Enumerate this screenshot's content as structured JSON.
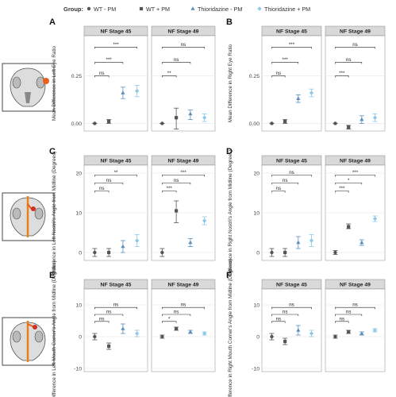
{
  "legend": {
    "title": "Group:",
    "items": [
      {
        "label": "WT - PM",
        "shape": "circle",
        "color": "#555555"
      },
      {
        "label": "WT + PM",
        "shape": "square",
        "color": "#555555"
      },
      {
        "label": "Thioridazine - PM",
        "shape": "triangle",
        "color": "#5b8fbf"
      },
      {
        "label": "Thioridazine + PM",
        "shape": "diamond",
        "color": "#8ec8e8"
      }
    ]
  },
  "colors": {
    "strip_bg": "#d9d9d9",
    "grid": "#ececec",
    "axis_text": "#444444",
    "line": "#222222"
  },
  "chart_data": [
    {
      "letter": "A",
      "type": "scatter",
      "ylabel": "Mean Difference in Left Eye Ratio",
      "ylim": [
        -0.04,
        0.46
      ],
      "ticks": [
        0.0,
        0.25
      ],
      "tick_labels": [
        "0.00",
        "0.25"
      ],
      "facets": [
        {
          "title": "NF Stage 45",
          "points": [
            {
              "y": 0.0,
              "lo": 0.0,
              "hi": 0.0
            },
            {
              "y": 0.01,
              "lo": 0.0,
              "hi": 0.02
            },
            {
              "y": 0.16,
              "lo": 0.13,
              "hi": 0.19
            },
            {
              "y": 0.17,
              "lo": 0.14,
              "hi": 0.2
            }
          ],
          "brackets": [
            {
              "from": 1,
              "to": 2,
              "y": 0.25,
              "label": "ns"
            },
            {
              "from": 1,
              "to": 3,
              "y": 0.32,
              "label": "***"
            },
            {
              "from": 1,
              "to": 4,
              "y": 0.4,
              "label": "***"
            }
          ]
        },
        {
          "title": "NF Stage 49",
          "points": [
            {
              "y": 0.0,
              "lo": 0.0,
              "hi": 0.0
            },
            {
              "y": 0.03,
              "lo": -0.03,
              "hi": 0.08
            },
            {
              "y": 0.05,
              "lo": 0.02,
              "hi": 0.07
            },
            {
              "y": 0.03,
              "lo": 0.01,
              "hi": 0.05
            }
          ],
          "brackets": [
            {
              "from": 1,
              "to": 2,
              "y": 0.25,
              "label": "**"
            },
            {
              "from": 1,
              "to": 3,
              "y": 0.32,
              "label": "ns"
            },
            {
              "from": 1,
              "to": 4,
              "y": 0.4,
              "label": "ns"
            }
          ]
        }
      ]
    },
    {
      "letter": "B",
      "type": "scatter",
      "ylabel": "Mean Difference in Right Eye Ratio",
      "ylim": [
        -0.04,
        0.46
      ],
      "ticks": [
        0.0,
        0.25
      ],
      "tick_labels": [
        "0.00",
        "0.25"
      ],
      "facets": [
        {
          "title": "NF Stage 45",
          "points": [
            {
              "y": 0.0,
              "lo": 0.0,
              "hi": 0.0
            },
            {
              "y": 0.01,
              "lo": 0.0,
              "hi": 0.02
            },
            {
              "y": 0.13,
              "lo": 0.11,
              "hi": 0.15
            },
            {
              "y": 0.16,
              "lo": 0.14,
              "hi": 0.18
            }
          ],
          "brackets": [
            {
              "from": 1,
              "to": 2,
              "y": 0.25,
              "label": "ns"
            },
            {
              "from": 1,
              "to": 3,
              "y": 0.32,
              "label": "***"
            },
            {
              "from": 1,
              "to": 4,
              "y": 0.4,
              "label": "***"
            }
          ]
        },
        {
          "title": "NF Stage 49",
          "points": [
            {
              "y": 0.0,
              "lo": 0.0,
              "hi": 0.0
            },
            {
              "y": -0.02,
              "lo": -0.03,
              "hi": -0.01
            },
            {
              "y": 0.02,
              "lo": 0.0,
              "hi": 0.04
            },
            {
              "y": 0.03,
              "lo": 0.01,
              "hi": 0.05
            }
          ],
          "brackets": [
            {
              "from": 1,
              "to": 2,
              "y": 0.25,
              "label": "***"
            },
            {
              "from": 1,
              "to": 3,
              "y": 0.32,
              "label": "ns"
            },
            {
              "from": 1,
              "to": 4,
              "y": 0.4,
              "label": "ns"
            }
          ]
        }
      ]
    },
    {
      "letter": "C",
      "type": "scatter",
      "ylabel": "Difference in Left Nostril's Angle from Midline (Degrees)",
      "ylim": [
        -2,
        22
      ],
      "ticks": [
        0,
        10,
        20
      ],
      "tick_labels": [
        "0",
        "10",
        "20"
      ],
      "facets": [
        {
          "title": "NF Stage 45",
          "points": [
            {
              "y": 0,
              "lo": -1,
              "hi": 1
            },
            {
              "y": 0,
              "lo": -1,
              "hi": 1
            },
            {
              "y": 1.5,
              "lo": 0,
              "hi": 3
            },
            {
              "y": 3,
              "lo": 1.5,
              "hi": 4.5
            }
          ],
          "brackets": [
            {
              "from": 1,
              "to": 2,
              "y": 15.5,
              "label": "ns"
            },
            {
              "from": 1,
              "to": 3,
              "y": 17.5,
              "label": "ns"
            },
            {
              "from": 1,
              "to": 4,
              "y": 19.5,
              "label": "**"
            }
          ]
        },
        {
          "title": "NF Stage 49",
          "points": [
            {
              "y": 0,
              "lo": -1,
              "hi": 1
            },
            {
              "y": 10.5,
              "lo": 7.5,
              "hi": 13
            },
            {
              "y": 2.5,
              "lo": 1.5,
              "hi": 3.5
            },
            {
              "y": 8,
              "lo": 7,
              "hi": 9
            }
          ],
          "brackets": [
            {
              "from": 1,
              "to": 2,
              "y": 15.5,
              "label": "***"
            },
            {
              "from": 1,
              "to": 3,
              "y": 17.5,
              "label": "ns"
            },
            {
              "from": 1,
              "to": 4,
              "y": 19.5,
              "label": "***"
            }
          ]
        }
      ]
    },
    {
      "letter": "D",
      "type": "scatter",
      "ylabel": "Difference in Right Nostril's Angle from Midline (Degrees)",
      "ylim": [
        -2,
        22
      ],
      "ticks": [
        0,
        10,
        20
      ],
      "tick_labels": [
        "0",
        "10",
        "20"
      ],
      "facets": [
        {
          "title": "NF Stage 45",
          "points": [
            {
              "y": 0,
              "lo": -1,
              "hi": 1
            },
            {
              "y": 0,
              "lo": -1,
              "hi": 1
            },
            {
              "y": 2.5,
              "lo": 1,
              "hi": 4
            },
            {
              "y": 3,
              "lo": 1.5,
              "hi": 4.5
            }
          ],
          "brackets": [
            {
              "from": 1,
              "to": 2,
              "y": 15.5,
              "label": "ns"
            },
            {
              "from": 1,
              "to": 3,
              "y": 17.5,
              "label": "ns"
            },
            {
              "from": 1,
              "to": 4,
              "y": 19.5,
              "label": "ns"
            }
          ]
        },
        {
          "title": "NF Stage 49",
          "points": [
            {
              "y": 0,
              "lo": -0.5,
              "hi": 0.5
            },
            {
              "y": 6.5,
              "lo": 6,
              "hi": 7.2
            },
            {
              "y": 2.5,
              "lo": 1.8,
              "hi": 3.2
            },
            {
              "y": 8.5,
              "lo": 7.8,
              "hi": 9.2
            }
          ],
          "brackets": [
            {
              "from": 1,
              "to": 2,
              "y": 15.5,
              "label": "***"
            },
            {
              "from": 1,
              "to": 3,
              "y": 17.5,
              "label": "*"
            },
            {
              "from": 1,
              "to": 4,
              "y": 19.5,
              "label": "***"
            }
          ]
        }
      ]
    },
    {
      "letter": "E",
      "type": "scatter",
      "ylabel": "Difference in Left Mouth Corner's Angle from Midline (Degrees)",
      "ylim": [
        -11,
        15
      ],
      "ticks": [
        -10,
        0,
        10
      ],
      "tick_labels": [
        "-10",
        "0",
        "10"
      ],
      "facets": [
        {
          "title": "NF Stage 45",
          "points": [
            {
              "y": 0,
              "lo": -1,
              "hi": 1
            },
            {
              "y": -3,
              "lo": -4,
              "hi": -2
            },
            {
              "y": 2.5,
              "lo": 1,
              "hi": 4
            },
            {
              "y": 1,
              "lo": 0,
              "hi": 2
            }
          ],
          "brackets": [
            {
              "from": 1,
              "to": 2,
              "y": 4.8,
              "label": "ns"
            },
            {
              "from": 1,
              "to": 3,
              "y": 7,
              "label": "ns"
            },
            {
              "from": 1,
              "to": 4,
              "y": 9.2,
              "label": "ns"
            }
          ]
        },
        {
          "title": "NF Stage 49",
          "points": [
            {
              "y": 0,
              "lo": -0.5,
              "hi": 0.5
            },
            {
              "y": 2.5,
              "lo": 2,
              "hi": 3
            },
            {
              "y": 1.5,
              "lo": 1,
              "hi": 2
            },
            {
              "y": 1,
              "lo": 0.5,
              "hi": 1.5
            }
          ],
          "brackets": [
            {
              "from": 1,
              "to": 2,
              "y": 4.8,
              "label": "*"
            },
            {
              "from": 1,
              "to": 3,
              "y": 7,
              "label": "ns"
            },
            {
              "from": 1,
              "to": 4,
              "y": 9.2,
              "label": "ns"
            }
          ]
        }
      ]
    },
    {
      "letter": "F",
      "type": "scatter",
      "ylabel": "Difference in Right Mouth Corner's Angle from Midline (Degrees)",
      "ylim": [
        -11,
        15
      ],
      "ticks": [
        -10,
        0,
        10
      ],
      "tick_labels": [
        "-10",
        "0",
        "10"
      ],
      "facets": [
        {
          "title": "NF Stage 45",
          "points": [
            {
              "y": 0,
              "lo": -1,
              "hi": 1
            },
            {
              "y": -1.5,
              "lo": -2.5,
              "hi": -0.5
            },
            {
              "y": 2,
              "lo": 0.5,
              "hi": 3.5
            },
            {
              "y": 1,
              "lo": 0,
              "hi": 2
            }
          ],
          "brackets": [
            {
              "from": 1,
              "to": 2,
              "y": 4.8,
              "label": "ns"
            },
            {
              "from": 1,
              "to": 3,
              "y": 7,
              "label": "ns"
            },
            {
              "from": 1,
              "to": 4,
              "y": 9.2,
              "label": "ns"
            }
          ]
        },
        {
          "title": "NF Stage 49",
          "points": [
            {
              "y": 0,
              "lo": -0.5,
              "hi": 0.5
            },
            {
              "y": 1.5,
              "lo": 1,
              "hi": 2
            },
            {
              "y": 1,
              "lo": 0.5,
              "hi": 1.5
            },
            {
              "y": 2,
              "lo": 1.5,
              "hi": 2.5
            }
          ],
          "brackets": [
            {
              "from": 1,
              "to": 2,
              "y": 4.8,
              "label": "ns"
            },
            {
              "from": 1,
              "to": 3,
              "y": 7,
              "label": "ns"
            },
            {
              "from": 1,
              "to": 4,
              "y": 9.2,
              "label": "ns"
            }
          ]
        }
      ]
    }
  ]
}
